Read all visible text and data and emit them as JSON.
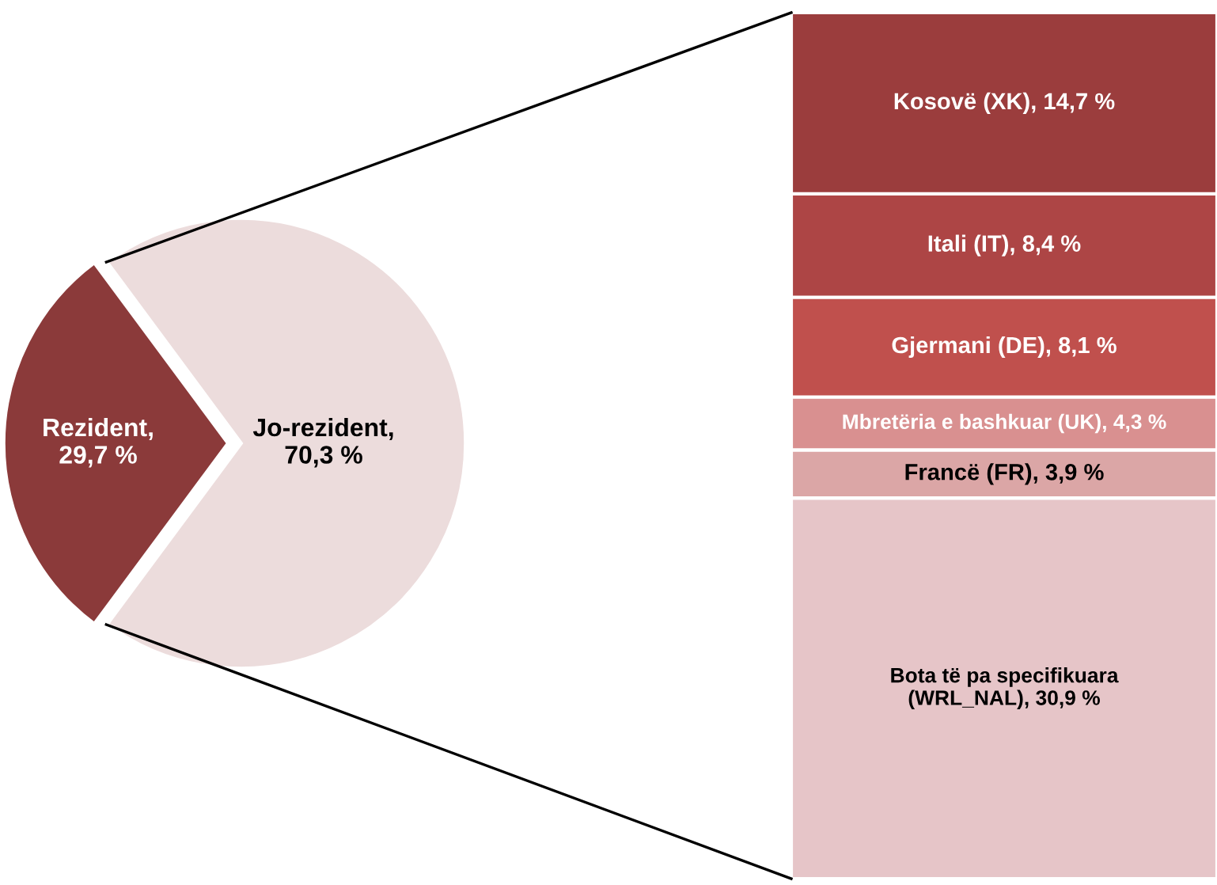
{
  "chart_data": [
    {
      "type": "pie",
      "categories": [
        null,
        null
      ],
      "values": [
        29.7,
        70.3
      ],
      "colors": [
        "#8b3a3a",
        "#ecdcdc"
      ],
      "value_labels": [
        "Rezident,\n29,7 %",
        "Jo-rezident,\n70,3 %"
      ]
    },
    {
      "type": "bar",
      "stacked": true,
      "categories": [
        null
      ],
      "series": [
        {
          "color": "#e6c5c8",
          "values": [
            30.9
          ],
          "value_labels": [
            "Bota të pa specifikuara\n(WRL_NAL), 30,9 %"
          ]
        },
        {
          "color": "#dba6a6",
          "values": [
            3.9
          ],
          "value_labels": [
            "Francë (FR), 3,9 %"
          ]
        },
        {
          "color": "#d99090",
          "values": [
            4.3
          ],
          "value_labels": [
            "Mbretëria e bashkuar (UK), 4,3 %"
          ]
        },
        {
          "color": "#c0504d",
          "values": [
            8.1
          ],
          "value_labels": [
            "Gjermani (DE), 8,1 %"
          ]
        },
        {
          "color": "#ad4545",
          "values": [
            8.4
          ],
          "value_labels": [
            "Itali (IT), 8,4 %"
          ]
        },
        {
          "color": "#9b3d3d",
          "values": [
            14.7
          ],
          "value_labels": [
            "Kosovë (XK), 14,7 %"
          ]
        }
      ]
    }
  ]
}
